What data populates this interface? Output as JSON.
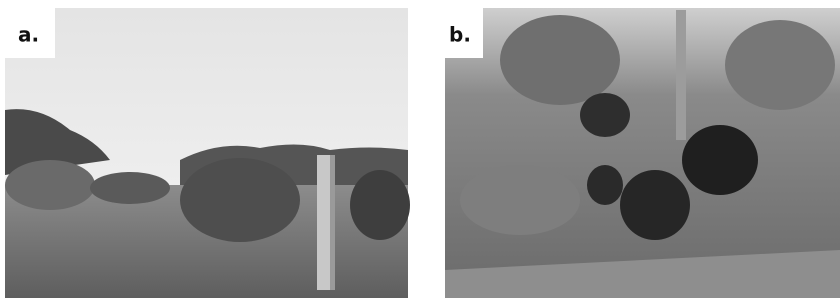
{
  "panels": [
    {
      "label": "a."
    },
    {
      "label": "b."
    }
  ]
}
